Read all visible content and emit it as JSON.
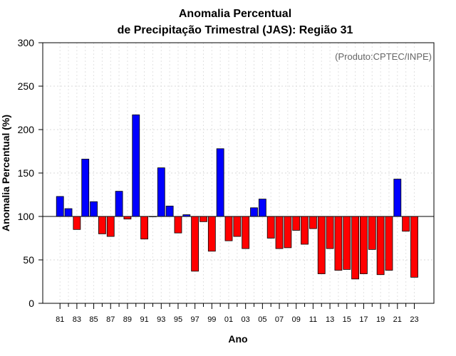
{
  "chart_data": {
    "type": "bar",
    "title_line1": "Anomalia Percentual",
    "title_line2": "de Precipitação Trimestral (JAS): Região 31",
    "xlabel": "Ano",
    "ylabel": "Anomalia Percentual (%)",
    "credit": "(Produto:CPTEC/INPE)",
    "baseline": 100,
    "ylim": [
      0,
      300
    ],
    "yticks": [
      0,
      50,
      100,
      150,
      200,
      250,
      300
    ],
    "grid": true,
    "years": [
      1981,
      1982,
      1983,
      1984,
      1985,
      1986,
      1987,
      1988,
      1989,
      1990,
      1991,
      1992,
      1993,
      1994,
      1995,
      1996,
      1997,
      1998,
      1999,
      2000,
      2001,
      2002,
      2003,
      2004,
      2005,
      2006,
      2007,
      2008,
      2009,
      2010,
      2011,
      2012,
      2013,
      2014,
      2015,
      2016,
      2017,
      2018,
      2019,
      2020,
      2021,
      2022,
      2023
    ],
    "tick_labels": [
      "81",
      "83",
      "85",
      "87",
      "89",
      "91",
      "93",
      "95",
      "97",
      "99",
      "01",
      "03",
      "05",
      "07",
      "09",
      "11",
      "13",
      "15",
      "17",
      "19",
      "21",
      "23"
    ],
    "values": [
      123,
      109,
      85,
      166,
      117,
      80,
      77,
      129,
      97,
      217,
      74,
      100,
      156,
      112,
      81,
      102,
      37,
      94,
      60,
      178,
      72,
      77,
      63,
      110,
      120,
      75,
      63,
      64,
      84,
      68,
      86,
      34,
      63,
      38,
      39,
      28,
      34,
      62,
      33,
      38,
      143,
      83,
      30
    ],
    "colors": {
      "above": "#0000ff",
      "below": "#ff0000",
      "edge": "#000000"
    }
  }
}
